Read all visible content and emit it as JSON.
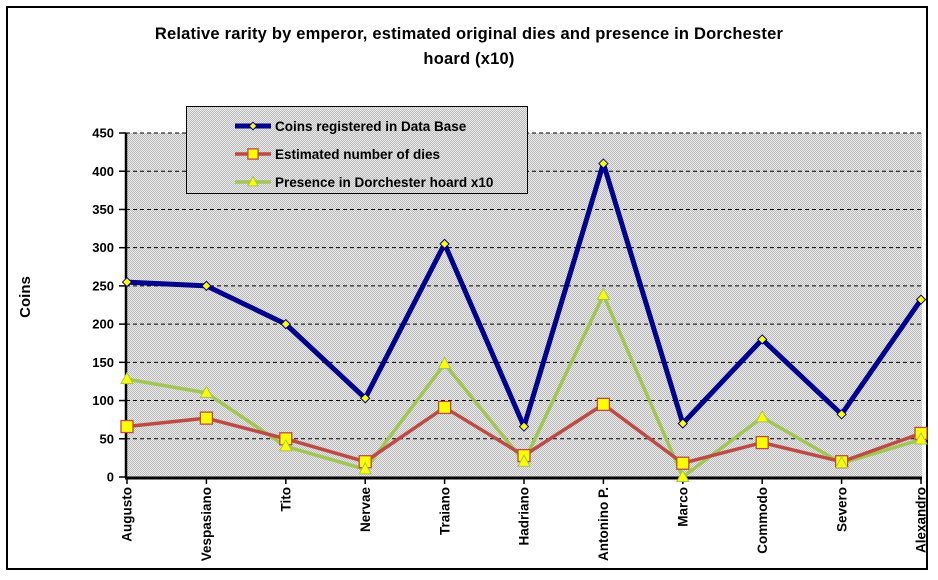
{
  "title": "Relative rarity by emperor, estimated original dies and presence in Dorchester hoard (x10)",
  "chart_data": {
    "type": "line",
    "title": "Relative rarity by emperor, estimated original dies and presence in Dorchester hoard (x10)",
    "xlabel": "",
    "ylabel": "Coins",
    "ylim": [
      0,
      450
    ],
    "ytick_step": 50,
    "grid": true,
    "grid_style": "dashed",
    "plot_background": "dithered light gray",
    "legend_position": "inside top-left",
    "categories": [
      "Augusto",
      "Vespasiano",
      "Tito",
      "Nervae",
      "Traiano",
      "Hadriano",
      "Antonino P.",
      "Marco",
      "Commodo",
      "Severo",
      "Alexandro"
    ],
    "series": [
      {
        "name": "Coins registered in Data Base",
        "color": "#00008F",
        "marker": "diamond",
        "marker_fill": "#FFFF00",
        "line_width": 5,
        "values": [
          255,
          250,
          200,
          103,
          305,
          66,
          410,
          70,
          180,
          82,
          232
        ]
      },
      {
        "name": "Estimated number of dies",
        "color": "#BE4A45",
        "marker": "square",
        "marker_fill": "#FFFF00",
        "line_width": 3.5,
        "values": [
          66,
          77,
          50,
          20,
          91,
          28,
          95,
          18,
          45,
          20,
          57
        ]
      },
      {
        "name": "Presence in Dorchester hoard x10",
        "color": "#A2C654",
        "marker": "triangle",
        "marker_fill": "#FFFF00",
        "line_width": 3.5,
        "values": [
          128,
          110,
          40,
          10,
          148,
          20,
          238,
          0,
          78,
          18,
          49
        ]
      }
    ]
  }
}
